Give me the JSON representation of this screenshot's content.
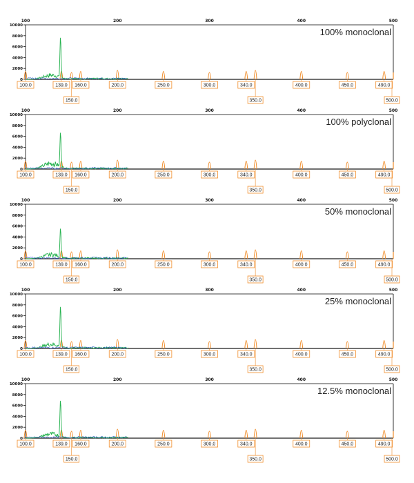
{
  "colors": {
    "size_standard": "#f08c28",
    "sample_trace": "#22b14c",
    "baseline": "#1a1a1a",
    "axis": "#000000",
    "label_box": "#f08c28"
  },
  "chart_data": [
    {
      "type": "line",
      "title": "100% monoclonal",
      "x_axis_ticks": [
        "100",
        "200",
        "300",
        "400",
        "500"
      ],
      "y_axis_ticks": [
        "10000",
        "8000",
        "6000",
        "4000",
        "2000",
        "0"
      ],
      "xlim": [
        100,
        500
      ],
      "ylim": [
        0,
        10000
      ],
      "size_standard_labels_row1": [
        "100.0",
        "139.0",
        "160.0",
        "200.0",
        "250.0",
        "300.0",
        "340.0",
        "400.0",
        "450.0",
        "490.0"
      ],
      "size_standard_labels_row2": [
        "150.0",
        "350.0",
        "500.0"
      ],
      "main_peak": {
        "x": 138,
        "y": 8000
      }
    },
    {
      "type": "line",
      "title": "100% polyclonal",
      "x_axis_ticks": [
        "100",
        "200",
        "300",
        "400",
        "500"
      ],
      "y_axis_ticks": [
        "10000",
        "8000",
        "6000",
        "4000",
        "2000",
        "0"
      ],
      "xlim": [
        100,
        500
      ],
      "ylim": [
        0,
        10000
      ],
      "size_standard_labels_row1": [
        "100.0",
        "139.0",
        "160.0",
        "200.0",
        "250.0",
        "300.0",
        "340.0",
        "400.0",
        "450.0",
        "490.0"
      ],
      "size_standard_labels_row2": [
        "150.0",
        "350.0",
        "500.0"
      ],
      "main_peak": {
        "x": 138,
        "y": 7000
      }
    },
    {
      "type": "line",
      "title": "50% monoclonal",
      "x_axis_ticks": [
        "100",
        "200",
        "300",
        "400",
        "500"
      ],
      "y_axis_ticks": [
        "10000",
        "8000",
        "6000",
        "4000",
        "2000",
        "0"
      ],
      "xlim": [
        100,
        500
      ],
      "ylim": [
        0,
        10000
      ],
      "size_standard_labels_row1": [
        "100.0",
        "139.0",
        "160.0",
        "200.0",
        "250.0",
        "300.0",
        "340.0",
        "400.0",
        "450.0",
        "490.0"
      ],
      "size_standard_labels_row2": [
        "150.0",
        "350.0",
        "500.0"
      ],
      "main_peak": {
        "x": 138,
        "y": 5800
      }
    },
    {
      "type": "line",
      "title": "25% monoclonal",
      "x_axis_ticks": [
        "100",
        "200",
        "300",
        "400",
        "500"
      ],
      "y_axis_ticks": [
        "10000",
        "8000",
        "6000",
        "4000",
        "2000",
        "0"
      ],
      "xlim": [
        100,
        500
      ],
      "ylim": [
        0,
        10000
      ],
      "size_standard_labels_row1": [
        "100.0",
        "139.0",
        "160.0",
        "200.0",
        "250.0",
        "300.0",
        "340.0",
        "400.0",
        "450.0",
        "490.0"
      ],
      "size_standard_labels_row2": [
        "150.0",
        "350.0",
        "500.0"
      ],
      "main_peak": {
        "x": 138,
        "y": 8000
      }
    },
    {
      "type": "line",
      "title": "12.5% monoclonal",
      "x_axis_ticks": [
        "100",
        "200",
        "300",
        "400",
        "500"
      ],
      "y_axis_ticks": [
        "10000",
        "8000",
        "6000",
        "4000",
        "2000",
        "0"
      ],
      "xlim": [
        100,
        500
      ],
      "ylim": [
        0,
        10000
      ],
      "size_standard_labels_row1": [
        "100.0",
        "139.0",
        "160.0",
        "200.0",
        "250.0",
        "300.0",
        "340.0",
        "400.0",
        "450.0",
        "490.0"
      ],
      "size_standard_labels_row2": [
        "150.0",
        "350.0",
        "500.0"
      ],
      "main_peak": {
        "x": 138,
        "y": 7200
      }
    }
  ]
}
